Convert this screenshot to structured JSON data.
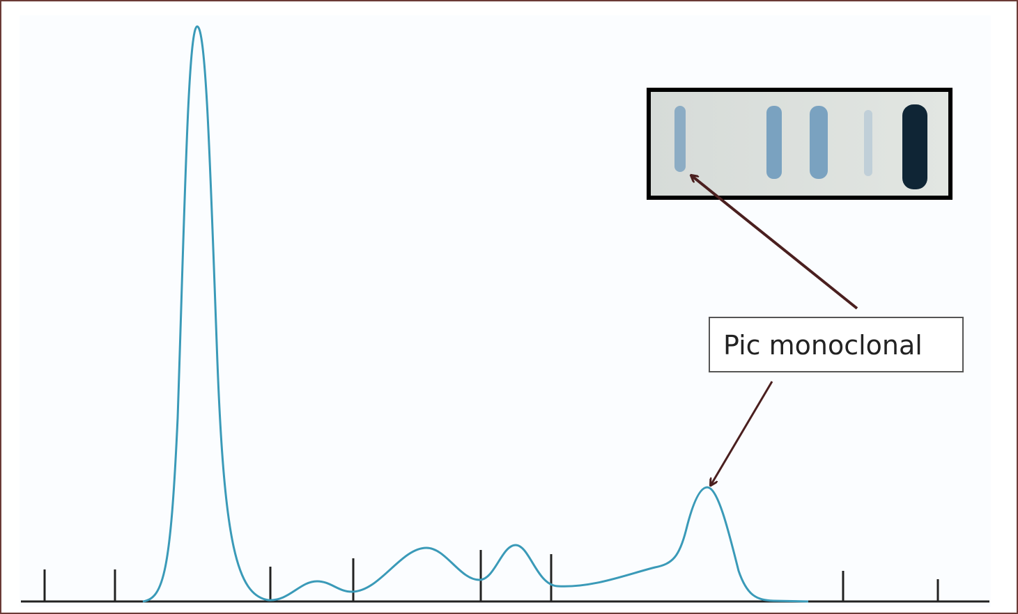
{
  "annotation": {
    "label": "Pic monoclonal"
  }
}
